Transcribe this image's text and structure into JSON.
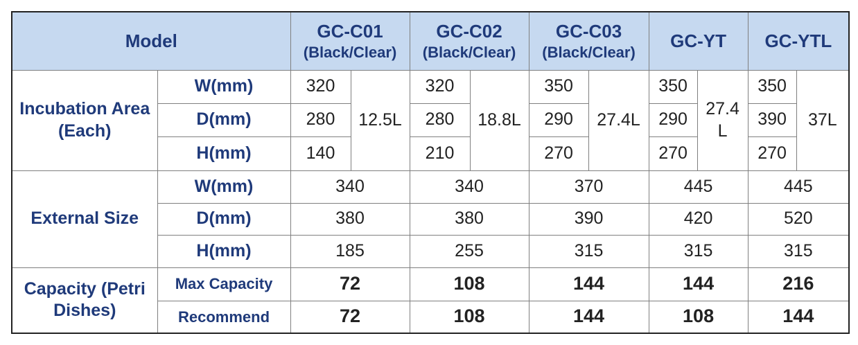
{
  "header": {
    "model": "Model",
    "columns": [
      {
        "name": "GC-C01",
        "variant": "(Black/Clear)"
      },
      {
        "name": "GC-C02",
        "variant": "(Black/Clear)"
      },
      {
        "name": "GC-C03",
        "variant": "(Black/Clear)"
      },
      {
        "name": "GC-YT"
      },
      {
        "name": "GC-YTL"
      }
    ]
  },
  "incubation": {
    "label": "Incubation Area (Each)",
    "rows": [
      {
        "label": "W(mm)",
        "values": [
          320,
          320,
          350,
          350,
          350
        ]
      },
      {
        "label": "D(mm)",
        "values": [
          280,
          280,
          290,
          290,
          390
        ]
      },
      {
        "label": "H(mm)",
        "values": [
          140,
          210,
          270,
          270,
          270
        ]
      }
    ],
    "volumes": [
      "12.5L",
      "18.8L",
      "27.4L",
      "27.4\nL",
      "37L"
    ]
  },
  "external": {
    "label": "External Size",
    "rows": [
      {
        "label": "W(mm)",
        "values": [
          340,
          340,
          370,
          445,
          445
        ]
      },
      {
        "label": "D(mm)",
        "values": [
          380,
          380,
          390,
          420,
          520
        ]
      },
      {
        "label": "H(mm)",
        "values": [
          185,
          255,
          315,
          315,
          315
        ]
      }
    ]
  },
  "capacity": {
    "label": "Capacity (Petri Dishes)",
    "rows": [
      {
        "label": "Max Capacity",
        "values": [
          72,
          108,
          144,
          144,
          216
        ]
      },
      {
        "label": "Recommend",
        "values": [
          72,
          108,
          144,
          108,
          144
        ]
      }
    ]
  }
}
